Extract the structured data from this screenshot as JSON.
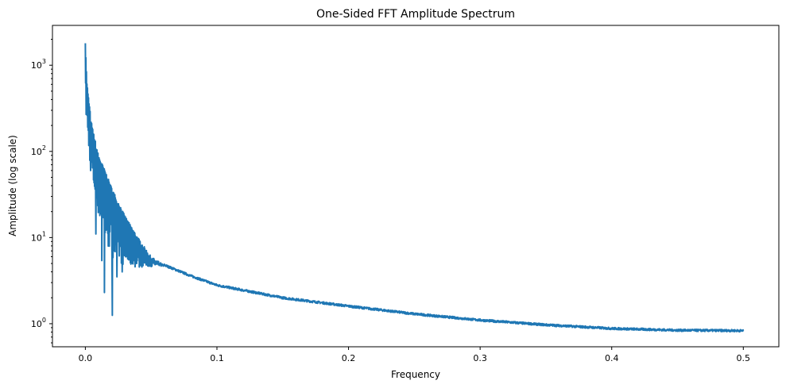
{
  "chart_data": {
    "type": "line",
    "title": "One-Sided FFT Amplitude Spectrum",
    "xlabel": "Frequency",
    "ylabel": "Amplitude (log scale)",
    "yscale": "log",
    "xlim": [
      -0.025,
      0.527
    ],
    "ylim": [
      0.54,
      2900
    ],
    "grid": false,
    "color": "#1f77b4",
    "x_ticks": [
      {
        "value": 0.0,
        "label": "0.0"
      },
      {
        "value": 0.1,
        "label": "0.1"
      },
      {
        "value": 0.2,
        "label": "0.2"
      },
      {
        "value": 0.3,
        "label": "0.3"
      },
      {
        "value": 0.4,
        "label": "0.4"
      },
      {
        "value": 0.5,
        "label": "0.5"
      }
    ],
    "y_ticks": [
      {
        "value": 1,
        "base": "10",
        "exp": "0"
      },
      {
        "value": 10,
        "base": "10",
        "exp": "1"
      },
      {
        "value": 100,
        "base": "10",
        "exp": "2"
      },
      {
        "value": 1000,
        "base": "10",
        "exp": "3"
      }
    ],
    "series": [
      {
        "name": "upper_envelope",
        "x": [
          0,
          0.001,
          0.002,
          0.005,
          0.01,
          0.015,
          0.02,
          0.03,
          0.04,
          0.05,
          0.06,
          0.08,
          0.1,
          0.15,
          0.2,
          0.25,
          0.3,
          0.35,
          0.4,
          0.45,
          0.5
        ],
        "y": [
          2000,
          700,
          480,
          200,
          90,
          60,
          38,
          18,
          10,
          6,
          4.8,
          3.6,
          2.8,
          2.0,
          1.6,
          1.3,
          1.1,
          0.97,
          0.88,
          0.84,
          0.83
        ]
      },
      {
        "name": "lower_envelope",
        "x": [
          0,
          0.002,
          0.005,
          0.01,
          0.015,
          0.02,
          0.03,
          0.04,
          0.05,
          0.06
        ],
        "y": [
          300,
          120,
          45,
          18,
          9,
          6,
          4.6,
          4.5,
          4.6,
          4.8
        ]
      }
    ],
    "dips": [
      {
        "x": 0.004,
        "y": 60
      },
      {
        "x": 0.008,
        "y": 11
      },
      {
        "x": 0.0125,
        "y": 5.4
      },
      {
        "x": 0.0145,
        "y": 2.3
      },
      {
        "x": 0.0205,
        "y": 1.25
      },
      {
        "x": 0.024,
        "y": 3.5
      },
      {
        "x": 0.028,
        "y": 4.0
      }
    ]
  }
}
